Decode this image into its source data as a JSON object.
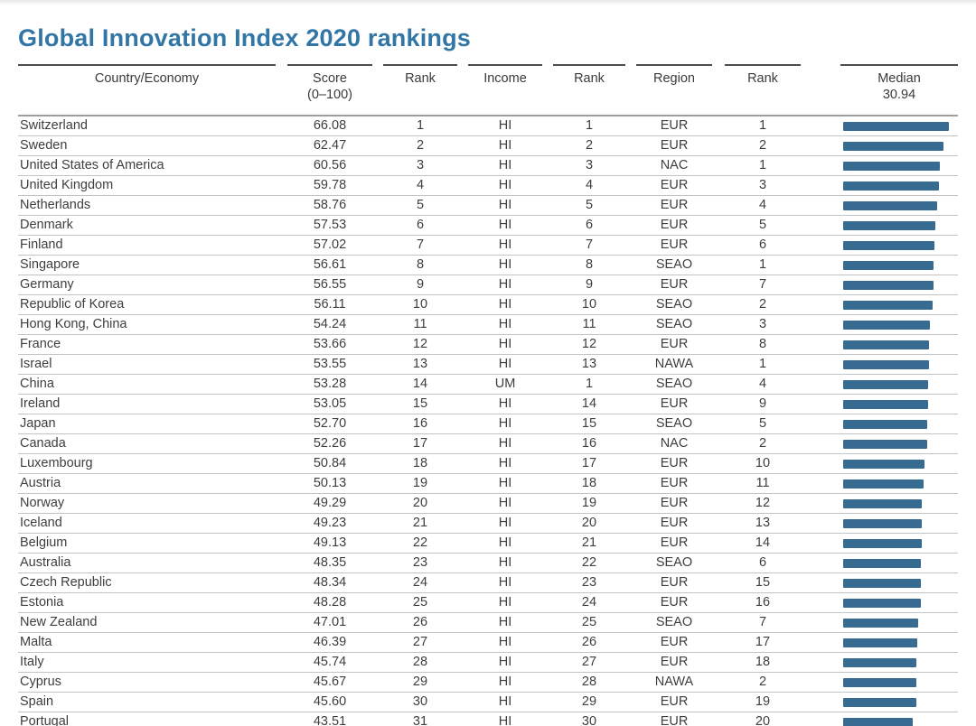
{
  "title": "Global Innovation Index 2020 rankings",
  "colors": {
    "title": "#3276a5",
    "bar": "#376b92",
    "header_line": "#4d4d4d",
    "row_line": "#c3c3c3"
  },
  "chart_data": {
    "type": "table",
    "title": "Global Innovation Index 2020 rankings",
    "bar_axis_max": 66.08,
    "median_label": "Median",
    "median_value": "30.94",
    "columns": [
      {
        "label": "Country/Economy",
        "sub": ""
      },
      {
        "label": "Score",
        "sub": "(0–100)"
      },
      {
        "label": "Rank",
        "sub": ""
      },
      {
        "label": "Income",
        "sub": ""
      },
      {
        "label": "Rank",
        "sub": ""
      },
      {
        "label": "Region",
        "sub": ""
      },
      {
        "label": "Rank",
        "sub": ""
      },
      {
        "label": "Median",
        "sub": "30.94"
      }
    ],
    "rows": [
      {
        "country": "Switzerland",
        "score": "66.08",
        "rank": "1",
        "income": "HI",
        "income_rank": "1",
        "region": "EUR",
        "region_rank": "1"
      },
      {
        "country": "Sweden",
        "score": "62.47",
        "rank": "2",
        "income": "HI",
        "income_rank": "2",
        "region": "EUR",
        "region_rank": "2"
      },
      {
        "country": "United States of America",
        "score": "60.56",
        "rank": "3",
        "income": "HI",
        "income_rank": "3",
        "region": "NAC",
        "region_rank": "1"
      },
      {
        "country": "United Kingdom",
        "score": "59.78",
        "rank": "4",
        "income": "HI",
        "income_rank": "4",
        "region": "EUR",
        "region_rank": "3"
      },
      {
        "country": "Netherlands",
        "score": "58.76",
        "rank": "5",
        "income": "HI",
        "income_rank": "5",
        "region": "EUR",
        "region_rank": "4"
      },
      {
        "country": "Denmark",
        "score": "57.53",
        "rank": "6",
        "income": "HI",
        "income_rank": "6",
        "region": "EUR",
        "region_rank": "5"
      },
      {
        "country": "Finland",
        "score": "57.02",
        "rank": "7",
        "income": "HI",
        "income_rank": "7",
        "region": "EUR",
        "region_rank": "6"
      },
      {
        "country": "Singapore",
        "score": "56.61",
        "rank": "8",
        "income": "HI",
        "income_rank": "8",
        "region": "SEAO",
        "region_rank": "1"
      },
      {
        "country": "Germany",
        "score": "56.55",
        "rank": "9",
        "income": "HI",
        "income_rank": "9",
        "region": "EUR",
        "region_rank": "7"
      },
      {
        "country": "Republic of Korea",
        "score": "56.11",
        "rank": "10",
        "income": "HI",
        "income_rank": "10",
        "region": "SEAO",
        "region_rank": "2"
      },
      {
        "country": "Hong Kong, China",
        "score": "54.24",
        "rank": "11",
        "income": "HI",
        "income_rank": "11",
        "region": "SEAO",
        "region_rank": "3"
      },
      {
        "country": "France",
        "score": "53.66",
        "rank": "12",
        "income": "HI",
        "income_rank": "12",
        "region": "EUR",
        "region_rank": "8"
      },
      {
        "country": "Israel",
        "score": "53.55",
        "rank": "13",
        "income": "HI",
        "income_rank": "13",
        "region": "NAWA",
        "region_rank": "1"
      },
      {
        "country": "China",
        "score": "53.28",
        "rank": "14",
        "income": "UM",
        "income_rank": "1",
        "region": "SEAO",
        "region_rank": "4"
      },
      {
        "country": "Ireland",
        "score": "53.05",
        "rank": "15",
        "income": "HI",
        "income_rank": "14",
        "region": "EUR",
        "region_rank": "9"
      },
      {
        "country": "Japan",
        "score": "52.70",
        "rank": "16",
        "income": "HI",
        "income_rank": "15",
        "region": "SEAO",
        "region_rank": "5"
      },
      {
        "country": "Canada",
        "score": "52.26",
        "rank": "17",
        "income": "HI",
        "income_rank": "16",
        "region": "NAC",
        "region_rank": "2"
      },
      {
        "country": "Luxembourg",
        "score": "50.84",
        "rank": "18",
        "income": "HI",
        "income_rank": "17",
        "region": "EUR",
        "region_rank": "10"
      },
      {
        "country": "Austria",
        "score": "50.13",
        "rank": "19",
        "income": "HI",
        "income_rank": "18",
        "region": "EUR",
        "region_rank": "11"
      },
      {
        "country": "Norway",
        "score": "49.29",
        "rank": "20",
        "income": "HI",
        "income_rank": "19",
        "region": "EUR",
        "region_rank": "12"
      },
      {
        "country": "Iceland",
        "score": "49.23",
        "rank": "21",
        "income": "HI",
        "income_rank": "20",
        "region": "EUR",
        "region_rank": "13"
      },
      {
        "country": "Belgium",
        "score": "49.13",
        "rank": "22",
        "income": "HI",
        "income_rank": "21",
        "region": "EUR",
        "region_rank": "14"
      },
      {
        "country": "Australia",
        "score": "48.35",
        "rank": "23",
        "income": "HI",
        "income_rank": "22",
        "region": "SEAO",
        "region_rank": "6"
      },
      {
        "country": "Czech Republic",
        "score": "48.34",
        "rank": "24",
        "income": "HI",
        "income_rank": "23",
        "region": "EUR",
        "region_rank": "15"
      },
      {
        "country": "Estonia",
        "score": "48.28",
        "rank": "25",
        "income": "HI",
        "income_rank": "24",
        "region": "EUR",
        "region_rank": "16"
      },
      {
        "country": "New Zealand",
        "score": "47.01",
        "rank": "26",
        "income": "HI",
        "income_rank": "25",
        "region": "SEAO",
        "region_rank": "7"
      },
      {
        "country": "Malta",
        "score": "46.39",
        "rank": "27",
        "income": "HI",
        "income_rank": "26",
        "region": "EUR",
        "region_rank": "17"
      },
      {
        "country": "Italy",
        "score": "45.74",
        "rank": "28",
        "income": "HI",
        "income_rank": "27",
        "region": "EUR",
        "region_rank": "18"
      },
      {
        "country": "Cyprus",
        "score": "45.67",
        "rank": "29",
        "income": "HI",
        "income_rank": "28",
        "region": "NAWA",
        "region_rank": "2"
      },
      {
        "country": "Spain",
        "score": "45.60",
        "rank": "30",
        "income": "HI",
        "income_rank": "29",
        "region": "EUR",
        "region_rank": "19"
      },
      {
        "country": "Portugal",
        "score": "43.51",
        "rank": "31",
        "income": "HI",
        "income_rank": "30",
        "region": "EUR",
        "region_rank": "20",
        "clipped": true
      }
    ]
  }
}
